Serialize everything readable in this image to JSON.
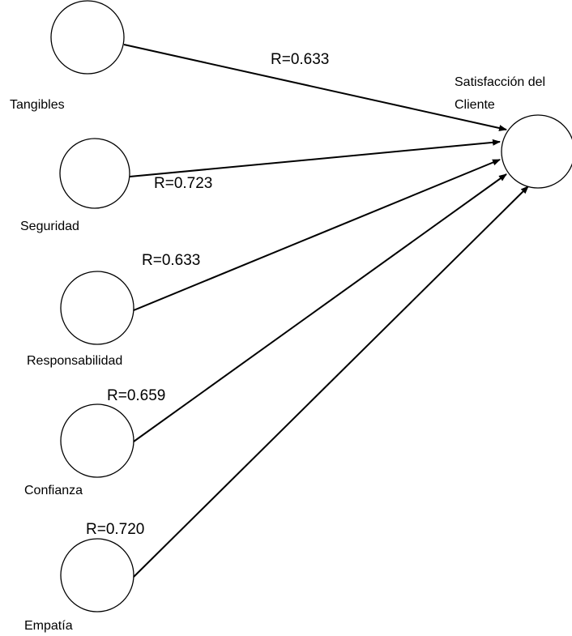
{
  "diagram": {
    "target": {
      "label_lines": [
        "Satisfacción del",
        "Cliente"
      ]
    },
    "sources": [
      {
        "id": "tangibles",
        "label": "Tangibles",
        "relation_label": "R=0.633"
      },
      {
        "id": "seguridad",
        "label": "Seguridad",
        "relation_label": "R=0.723"
      },
      {
        "id": "responsabilidad",
        "label": "Responsabilidad",
        "relation_label": "R=0.633"
      },
      {
        "id": "confianza",
        "label": "Confianza",
        "relation_label": "R=0.659"
      },
      {
        "id": "empatia",
        "label": "Empatía",
        "relation_label": "R=0.720"
      }
    ],
    "colors": {
      "stroke": "#000000",
      "background": "#ffffff"
    }
  }
}
